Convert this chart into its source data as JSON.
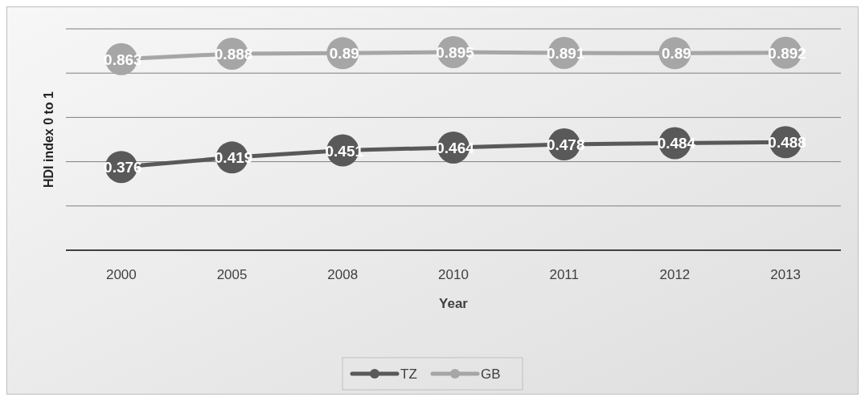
{
  "chart_data": {
    "type": "line",
    "xlabel": "Year",
    "ylabel": "HDI index 0 to 1",
    "categories": [
      "2000",
      "2005",
      "2008",
      "2010",
      "2011",
      "2012",
      "2013"
    ],
    "series": [
      {
        "name": "TZ",
        "color": "#595959",
        "values": [
          0.376,
          0.419,
          0.451,
          0.464,
          0.478,
          0.484,
          0.488
        ]
      },
      {
        "name": "GB",
        "color": "#a6a6a6",
        "values": [
          0.863,
          0.888,
          0.89,
          0.895,
          0.891,
          0.89,
          0.892
        ]
      }
    ],
    "ylim": [
      0,
      1
    ],
    "yticks": [
      {
        "value": 0,
        "label": null
      },
      {
        "value": 0.2,
        "label": null
      },
      {
        "value": 0.4,
        "label": null
      },
      {
        "value": 0.6,
        "label": null
      },
      {
        "value": 0.8,
        "label": null
      },
      {
        "value": 1,
        "label": null
      }
    ],
    "grid": "y",
    "legend": "bottom",
    "marker": "circle",
    "line_style": "solid",
    "data_labels": true,
    "tick_labels": "x"
  }
}
